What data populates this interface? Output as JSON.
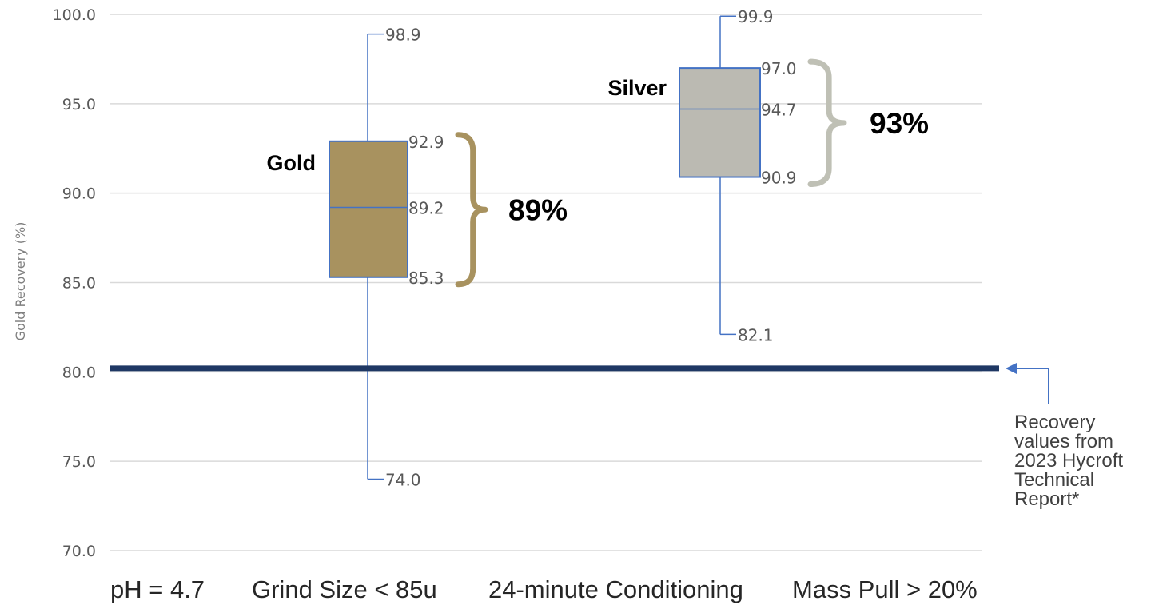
{
  "chart_data": {
    "type": "box",
    "ylabel": "Gold Recovery (%)",
    "ylim": [
      70,
      100
    ],
    "yticks": [
      "100.0",
      "95.0",
      "90.0",
      "85.0",
      "80.0",
      "75.0",
      "70.0"
    ],
    "grid": true,
    "series": [
      {
        "name": "Gold",
        "min": 74.0,
        "q1": 85.3,
        "median": 89.2,
        "q3": 92.9,
        "max": 98.9,
        "labels": {
          "min": "74.0",
          "q1": "85.3",
          "median": "89.2",
          "q3": "92.9",
          "max": "98.9"
        },
        "recovery_label": "89%",
        "color": "#a8925f",
        "brace_color": "#a8925f"
      },
      {
        "name": "Silver",
        "min": 82.1,
        "q1": 90.9,
        "median": 94.7,
        "q3": 97.0,
        "max": 99.9,
        "labels": {
          "min": "82.1",
          "q1": "90.9",
          "median": "94.7",
          "q3": "97.0",
          "max": "99.9"
        },
        "recovery_label": "93%",
        "color": "#bbbab2",
        "brace_color": "#bfc0b5"
      }
    ],
    "reference_line": {
      "value": 80.2,
      "color": "#1f3864"
    },
    "annotation": [
      "Recovery",
      "values from",
      "2023 Hycroft",
      "Technical",
      "Report*"
    ],
    "conditions": [
      "pH = 4.7",
      "Grind Size < 85u",
      "24-minute Conditioning",
      "Mass Pull > 20%"
    ],
    "colors": {
      "box_border": "#4472c4",
      "grid": "#d9d9d9",
      "arrow": "#4472c4"
    }
  }
}
